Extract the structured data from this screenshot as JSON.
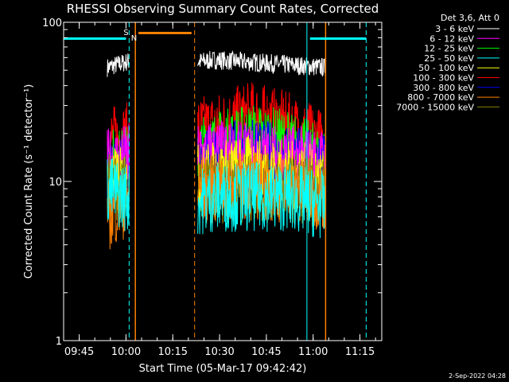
{
  "chart_data": {
    "type": "line",
    "title": "RHESSI Observing Summary Count Rates, Corrected",
    "xlabel": "Start Time (05-Mar-17 09:42:42)",
    "ylabel": "Corrected Count Rate (s⁻¹ detector⁻¹)",
    "y_scale": "log",
    "ylim": [
      1,
      100
    ],
    "xlim": [
      "09:40",
      "11:22"
    ],
    "x_ticks": [
      "09:45",
      "10:00",
      "10:15",
      "10:30",
      "10:45",
      "11:00",
      "11:15"
    ],
    "y_ticks": [
      "1",
      "10",
      "100"
    ],
    "legend_header": "Det 3,6, Att 0",
    "legend_position": "top-right",
    "grid": false,
    "timestamp": "2-Sep-2022 04:28",
    "segments": [
      [
        "09:54",
        "10:01"
      ],
      [
        "10:23",
        "11:04"
      ]
    ],
    "series": [
      {
        "name": "3 - 6 keV",
        "color": "#ffffff",
        "level": [
          52,
          60,
          55,
          58,
          56,
          54,
          52
        ]
      },
      {
        "name": "6 - 12 keV",
        "color": "#ff00ff",
        "level": [
          13,
          15,
          14,
          15,
          14,
          14,
          13
        ]
      },
      {
        "name": "12 - 25 keV",
        "color": "#00ff00",
        "level": [
          13,
          14,
          14,
          17,
          19,
          17,
          13
        ]
      },
      {
        "name": "25 - 50 keV",
        "color": "#00ffff",
        "level": [
          9,
          7,
          7,
          8,
          8,
          8,
          7
        ]
      },
      {
        "name": "50 - 100 keV",
        "color": "#ffff00",
        "level": [
          10,
          10,
          10,
          11,
          12,
          11,
          10
        ]
      },
      {
        "name": "100 - 300 keV",
        "color": "#ff0000",
        "level": [
          18,
          20,
          20,
          22,
          26,
          22,
          17
        ]
      },
      {
        "name": "300 - 800 keV",
        "color": "#0000ff",
        "level": [
          10,
          13,
          13,
          14,
          15,
          14,
          12
        ]
      },
      {
        "name": "800 - 7000 keV",
        "color": "#ff8000",
        "level": [
          6,
          8.5,
          8.5,
          9,
          9.5,
          9,
          8
        ]
      },
      {
        "name": "7000 - 15000 keV",
        "color": "#808000",
        "level": [
          9,
          9,
          9,
          9,
          9,
          9,
          9
        ]
      }
    ],
    "saa_flags": {
      "label_s": "S",
      "label_n": "N",
      "cyan_bars": [
        [
          "09:40",
          "10:00"
        ],
        [
          "10:59",
          "11:17"
        ]
      ],
      "orange_bar": [
        "10:04",
        "10:21"
      ],
      "cyan_solid_lines": [
        "09:40",
        "10:58"
      ],
      "cyan_dashed_lines": [
        "10:01",
        "11:17"
      ],
      "orange_solid_lines": [
        "10:03",
        "11:04"
      ],
      "orange_dashed_lines": [
        "10:22"
      ]
    }
  }
}
